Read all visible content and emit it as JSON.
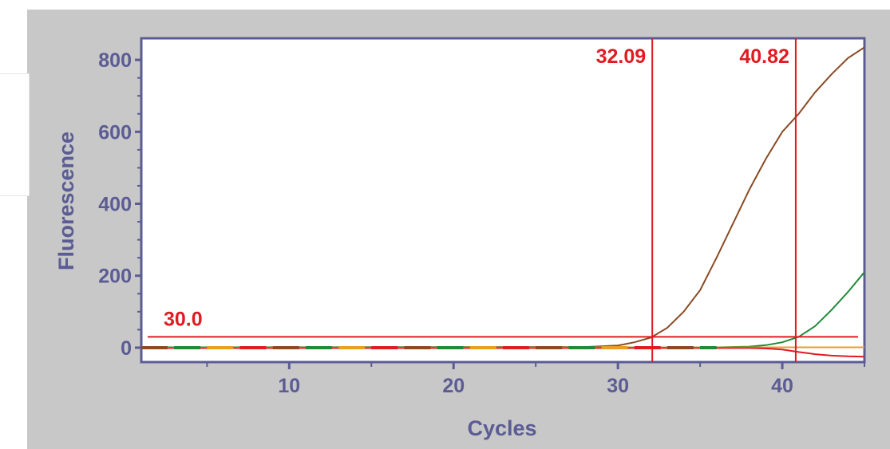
{
  "chart_data": {
    "type": "line",
    "xlabel": "Cycles",
    "ylabel": "Fluorescence",
    "xlim": [
      1,
      45
    ],
    "ylim": [
      -40,
      860
    ],
    "x_ticks": [
      10,
      20,
      30,
      40
    ],
    "y_ticks": [
      0,
      200,
      400,
      600,
      800
    ],
    "grid": false,
    "threshold": {
      "value": 30,
      "label": "30.0"
    },
    "ct_markers": [
      {
        "x": 32.09,
        "label": "32.09"
      },
      {
        "x": 40.82,
        "label": "40.82"
      }
    ],
    "colors": {
      "axis": "#5b5c94",
      "marker": "#e01b22",
      "panel": "#c8c8c8"
    },
    "series": [
      {
        "color": "#8a4a24",
        "x": [
          1,
          28,
          30,
          31,
          32,
          33,
          34,
          35,
          36,
          37,
          38,
          39,
          40,
          41,
          42,
          43,
          44,
          45
        ],
        "y": [
          1,
          2,
          6,
          15,
          28,
          55,
          100,
          160,
          250,
          345,
          440,
          525,
          600,
          650,
          710,
          760,
          805,
          835
        ]
      },
      {
        "color": "#1e8a38",
        "x": [
          1,
          36,
          38,
          39,
          40,
          41,
          42,
          43,
          44,
          45
        ],
        "y": [
          1,
          1,
          3,
          7,
          15,
          30,
          60,
          105,
          155,
          210
        ]
      },
      {
        "color": "#e8a020",
        "x": [
          1,
          45
        ],
        "y": [
          0,
          1
        ]
      },
      {
        "color": "#e01b22",
        "x": [
          1,
          38,
          39,
          40,
          41,
          42,
          43,
          44,
          45
        ],
        "y": [
          -1,
          -1,
          -2,
          -5,
          -12,
          -18,
          -22,
          -24,
          -25
        ]
      }
    ]
  }
}
